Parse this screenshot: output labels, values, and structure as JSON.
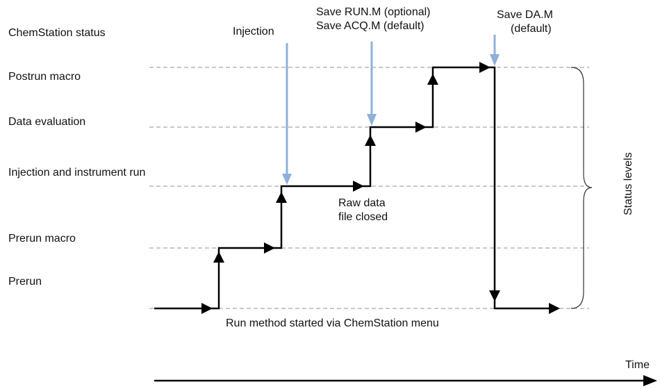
{
  "status_header": "ChemStation status",
  "levels": [
    "Postrun macro",
    "Data evaluation",
    "Injection and instrument run",
    "Prerun macro",
    "Prerun"
  ],
  "events": [
    {
      "lines": [
        "Injection"
      ]
    },
    {
      "lines": [
        "Save RUN.M (optional)",
        "Save ACQ.M (default)"
      ]
    },
    {
      "lines": [
        "Save DA.M",
        "(default)"
      ]
    }
  ],
  "notes": {
    "raw_data": [
      "Raw data",
      "file closed"
    ],
    "start": "Run method started via ChemStation menu",
    "status_levels": "Status levels",
    "time": "Time"
  }
}
